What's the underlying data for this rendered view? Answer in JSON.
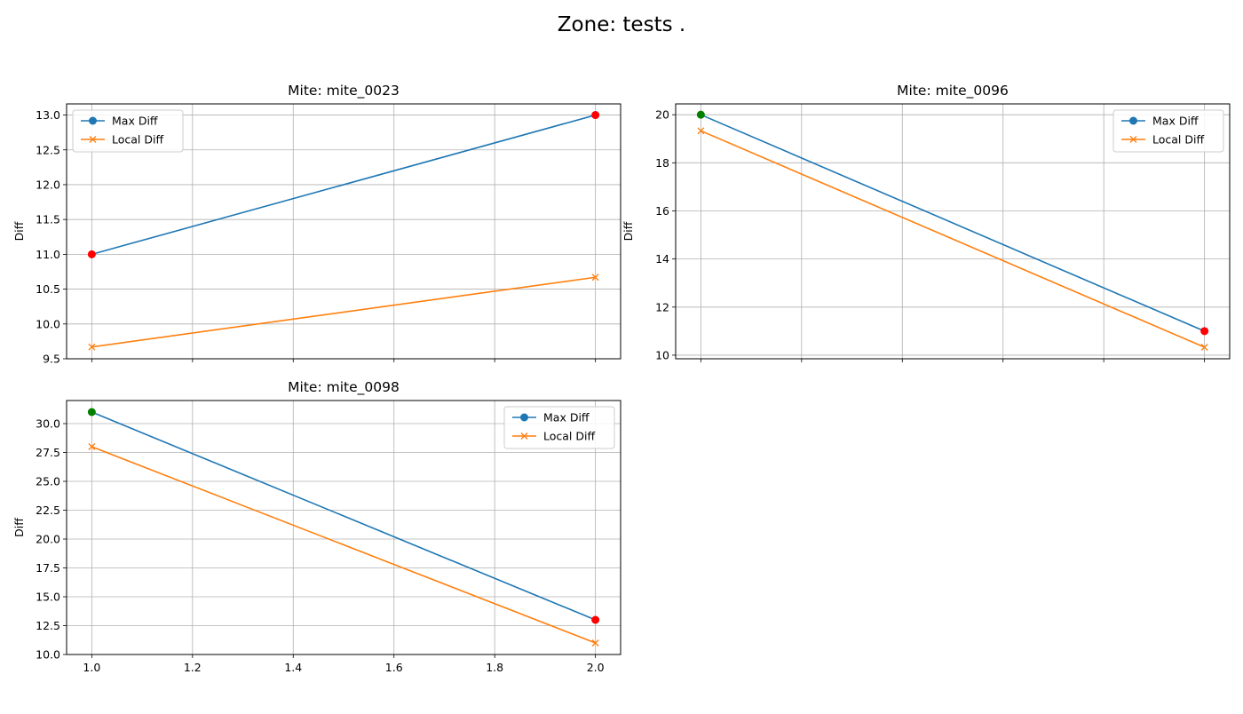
{
  "figure": {
    "title": "Zone: tests ."
  },
  "chart_data": [
    {
      "type": "line",
      "title": "Mite: mite_0023",
      "xlabel": "",
      "ylabel": "Diff",
      "xlim": [
        0.95,
        2.05
      ],
      "ylim": [
        9.5,
        13.16
      ],
      "xticks": [
        1.0,
        1.2,
        1.4,
        1.6,
        1.8,
        2.0
      ],
      "xtick_labels_visible": false,
      "yticks": [
        "9.5",
        "10.0",
        "10.5",
        "11.0",
        "11.5",
        "12.0",
        "12.5",
        "13.0"
      ],
      "grid": true,
      "legend": "upper left",
      "x": [
        1.0,
        2.0
      ],
      "series": [
        {
          "name": "Max Diff",
          "values": [
            11.0,
            13.0
          ],
          "marker": "circle",
          "color": "#1f77b4",
          "point_colors": [
            "#ff0000",
            "#ff0000"
          ]
        },
        {
          "name": "Local Diff",
          "values": [
            9.67,
            10.67
          ],
          "marker": "x",
          "color": "#ff7f0e"
        }
      ]
    },
    {
      "type": "line",
      "title": "Mite: mite_0096",
      "xlabel": "",
      "ylabel": "Diff",
      "xlim": [
        0.95,
        2.05
      ],
      "ylim": [
        9.85,
        20.45
      ],
      "xticks": [
        1.0,
        1.2,
        1.4,
        1.6,
        1.8,
        2.0
      ],
      "xtick_labels_visible": false,
      "yticks": [
        "10",
        "12",
        "14",
        "16",
        "18",
        "20"
      ],
      "grid": true,
      "legend": "upper right",
      "x": [
        1.0,
        2.0
      ],
      "series": [
        {
          "name": "Max Diff",
          "values": [
            20.0,
            11.0
          ],
          "marker": "circle",
          "color": "#1f77b4",
          "point_colors": [
            "#008000",
            "#ff0000"
          ]
        },
        {
          "name": "Local Diff",
          "values": [
            19.33,
            10.33
          ],
          "marker": "x",
          "color": "#ff7f0e"
        }
      ]
    },
    {
      "type": "line",
      "title": "Mite: mite_0098",
      "xlabel": "",
      "ylabel": "Diff",
      "xlim": [
        0.95,
        2.05
      ],
      "ylim": [
        10.0,
        32.0
      ],
      "xticks": [
        1.0,
        1.2,
        1.4,
        1.6,
        1.8,
        2.0
      ],
      "xtick_labels": [
        "1.0",
        "1.2",
        "1.4",
        "1.6",
        "1.8",
        "2.0"
      ],
      "xtick_labels_visible": true,
      "yticks": [
        "10.0",
        "12.5",
        "15.0",
        "17.5",
        "20.0",
        "22.5",
        "25.0",
        "27.5",
        "30.0"
      ],
      "grid": true,
      "legend": "upper right",
      "x": [
        1.0,
        2.0
      ],
      "series": [
        {
          "name": "Max Diff",
          "values": [
            31.0,
            13.0
          ],
          "marker": "circle",
          "color": "#1f77b4",
          "point_colors": [
            "#008000",
            "#ff0000"
          ]
        },
        {
          "name": "Local Diff",
          "values": [
            28.0,
            11.0
          ],
          "marker": "x",
          "color": "#ff7f0e"
        }
      ]
    }
  ]
}
